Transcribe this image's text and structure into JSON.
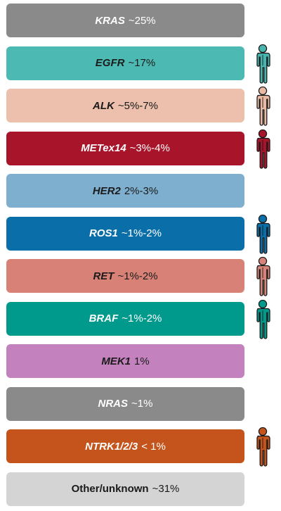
{
  "mutations": [
    {
      "gene": "KRAS",
      "percent": "~25%",
      "bg": "#8a8a8a",
      "text_color": "#ffffff",
      "italic": true,
      "figure": null
    },
    {
      "gene": "EGFR",
      "percent": "~17%",
      "bg": "#4cbab3",
      "text_color": "#1a1a1a",
      "italic": true,
      "figure": {
        "icon": "person-icon",
        "color": "#46b5ad"
      }
    },
    {
      "gene": "ALK",
      "percent": "~5%-7%",
      "bg": "#ecc0ac",
      "text_color": "#1a1a1a",
      "italic": true,
      "figure": {
        "icon": "person-icon",
        "color": "#eab9a3"
      }
    },
    {
      "gene": "METex14",
      "percent": "~3%-4%",
      "bg": "#a8142a",
      "text_color": "#ffffff",
      "italic": true,
      "figure": {
        "icon": "person-icon",
        "color": "#a8142a"
      }
    },
    {
      "gene": "HER2",
      "percent": "2%-3%",
      "bg": "#7fafcf",
      "text_color": "#1a1a1a",
      "italic": true,
      "figure": null
    },
    {
      "gene": "ROS1",
      "percent": "~1%-2%",
      "bg": "#0a6fa8",
      "text_color": "#ffffff",
      "italic": true,
      "figure": {
        "icon": "person-icon",
        "color": "#0a6fa8"
      }
    },
    {
      "gene": "RET",
      "percent": "~1%-2%",
      "bg": "#d88277",
      "text_color": "#1a1a1a",
      "italic": true,
      "figure": {
        "icon": "person-icon",
        "color": "#d6837a"
      }
    },
    {
      "gene": "BRAF",
      "percent": "~1%-2%",
      "bg": "#009a8c",
      "text_color": "#ffffff",
      "italic": true,
      "figure": {
        "icon": "person-icon",
        "color": "#009a8c"
      }
    },
    {
      "gene": "MEK1",
      "percent": "1%",
      "bg": "#c382bd",
      "text_color": "#1a1a1a",
      "italic": true,
      "figure": null
    },
    {
      "gene": "NRAS",
      "percent": "~1%",
      "bg": "#8a8a8a",
      "text_color": "#ffffff",
      "italic": true,
      "figure": null
    },
    {
      "gene": "NTRK1/2/3",
      "percent": "< 1%",
      "bg": "#c4541b",
      "text_color": "#ffffff",
      "italic": true,
      "figure": {
        "icon": "person-icon",
        "color": "#c4541b"
      }
    },
    {
      "gene": "Other/unknown",
      "percent": "~31%",
      "bg": "#d4d4d4",
      "text_color": "#1a1a1a",
      "italic": false,
      "figure": null
    }
  ]
}
